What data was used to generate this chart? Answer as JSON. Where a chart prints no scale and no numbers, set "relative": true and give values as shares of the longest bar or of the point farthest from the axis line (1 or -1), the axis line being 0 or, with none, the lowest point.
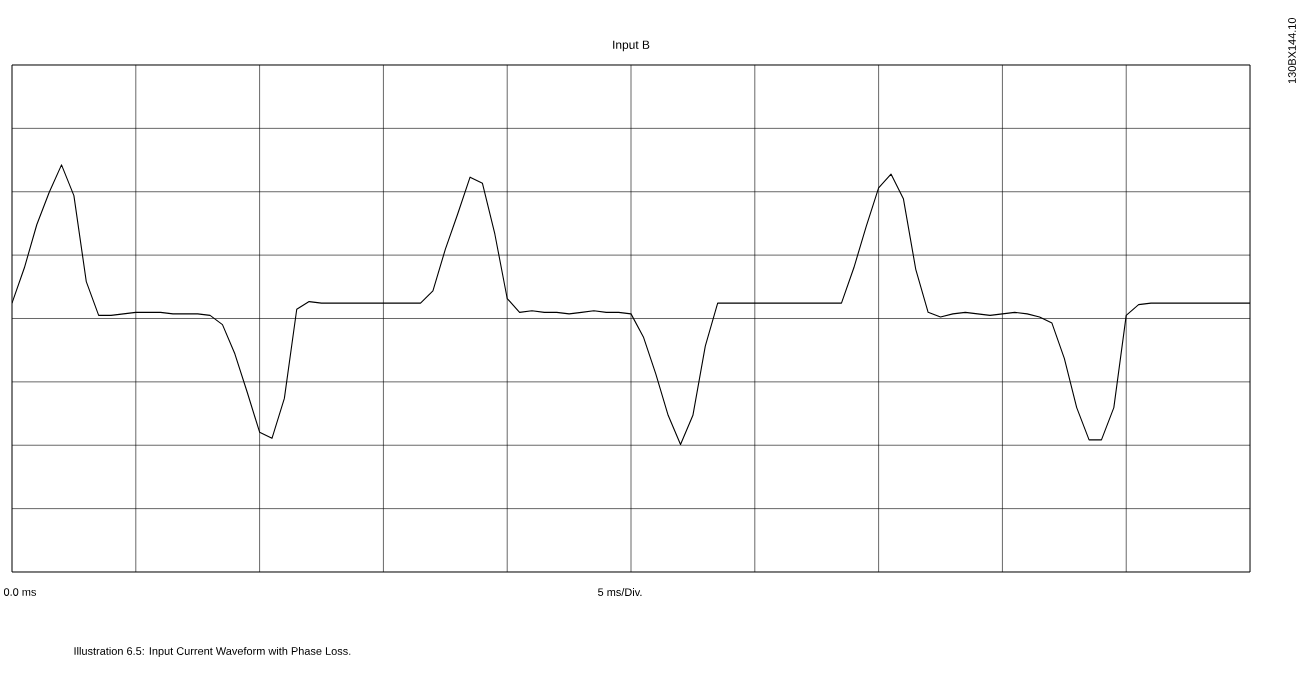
{
  "chart_data": {
    "type": "line",
    "title": "Input B",
    "relative": true,
    "color": "#000000",
    "grid": true,
    "marker": "none",
    "line_style": "solid",
    "tick_labels": false,
    "categories": [
      null,
      null,
      null,
      null,
      null,
      null,
      null,
      null,
      null,
      null,
      null,
      null,
      null,
      null,
      null,
      null,
      null,
      null,
      null,
      null,
      null,
      null,
      null,
      null,
      null,
      null,
      null,
      null,
      null,
      null,
      null,
      null,
      null,
      null,
      null,
      null,
      null,
      null,
      null,
      null,
      null,
      null,
      null,
      null,
      null,
      null,
      null,
      null,
      null,
      null,
      null,
      null,
      null,
      null,
      null,
      null,
      null,
      null,
      null,
      null,
      null,
      null,
      null,
      null,
      null,
      null,
      null,
      null,
      null,
      null,
      null,
      null,
      null,
      null,
      null,
      null,
      null,
      null,
      null,
      null,
      null,
      null,
      null,
      null,
      null,
      null,
      null,
      null,
      null,
      null,
      null,
      null,
      null,
      null,
      null,
      null,
      null,
      null,
      null,
      null,
      null
    ],
    "values": [
      0.1,
      0.33,
      0.61,
      0.82,
      1.0,
      0.8,
      0.24,
      0.02,
      0.02,
      0.03,
      0.04,
      0.04,
      0.04,
      0.03,
      0.03,
      0.03,
      0.02,
      -0.04,
      -0.23,
      -0.48,
      -0.74,
      -0.78,
      -0.52,
      0.06,
      0.11,
      0.1,
      0.1,
      0.1,
      0.1,
      0.1,
      0.1,
      0.1,
      0.1,
      0.1,
      0.18,
      0.45,
      0.68,
      0.92,
      0.88,
      0.55,
      0.13,
      0.04,
      0.05,
      0.04,
      0.04,
      0.03,
      0.04,
      0.05,
      0.04,
      0.04,
      0.03,
      -0.12,
      -0.36,
      -0.63,
      -0.82,
      -0.63,
      -0.18,
      0.1,
      0.1,
      0.1,
      0.1,
      0.1,
      0.1,
      0.1,
      0.1,
      0.1,
      0.1,
      0.1,
      0.33,
      0.6,
      0.85,
      0.94,
      0.78,
      0.32,
      0.04,
      0.01,
      0.03,
      0.04,
      0.03,
      0.02,
      0.03,
      0.04,
      0.03,
      0.01,
      -0.03,
      -0.26,
      -0.58,
      -0.79,
      -0.79,
      -0.58,
      0.02,
      0.09,
      0.1,
      0.1,
      0.1,
      0.1,
      0.1,
      0.1,
      0.1,
      0.1,
      0.1
    ],
    "annotations": [
      "0.0 ms",
      "5 ms/Div.",
      "Illustration 6.5: Input Current Waveform with Phase Loss.",
      "130BX144.10"
    ]
  }
}
